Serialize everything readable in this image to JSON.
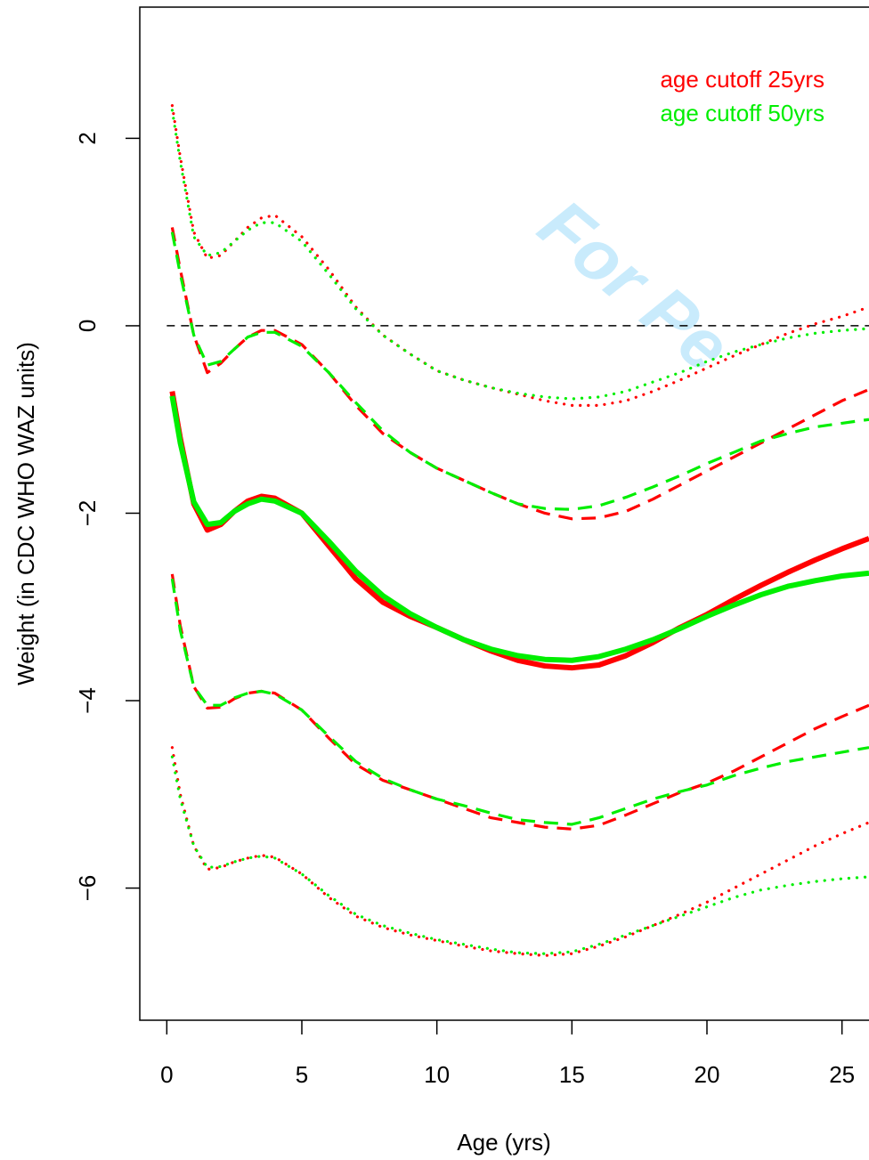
{
  "chart_data": {
    "type": "line",
    "x_label": "Age (yrs)",
    "y_label": "Weight (in CDC WHO WAZ units)",
    "watermark": "For Pe",
    "xlim": [
      -1,
      26
    ],
    "ylim": [
      -7.41,
      3.4
    ],
    "xticks": [
      0,
      5,
      10,
      15,
      20,
      25
    ],
    "yticks": [
      {
        "value": -6,
        "label": "−6"
      },
      {
        "value": -4,
        "label": "−4"
      },
      {
        "value": -2,
        "label": "−2"
      },
      0,
      2
    ],
    "hline": 0,
    "legend": [
      {
        "name": "age cutoff 25yrs",
        "color": "#ff0000"
      },
      {
        "name": "age cutoff 50yrs",
        "color": "#00ee00"
      }
    ],
    "legend_position": "top-right",
    "x": [
      0.2,
      0.5,
      1,
      1.5,
      2,
      2.5,
      3,
      3.5,
      4,
      5,
      6,
      7,
      8,
      9,
      10,
      11,
      12,
      13,
      14,
      15,
      16,
      17,
      18,
      19,
      20,
      21,
      22,
      23,
      24,
      25,
      26
    ],
    "series": [
      {
        "color": "#ff0000",
        "style": "dotted",
        "values": [
          2.35,
          1.8,
          1.0,
          0.72,
          0.75,
          0.9,
          1.05,
          1.15,
          1.18,
          0.95,
          0.6,
          0.2,
          -0.1,
          -0.3,
          -0.48,
          -0.58,
          -0.66,
          -0.73,
          -0.8,
          -0.85,
          -0.85,
          -0.8,
          -0.7,
          -0.58,
          -0.45,
          -0.32,
          -0.2,
          -0.08,
          0.02,
          0.1,
          0.2
        ]
      },
      {
        "color": "#00ee00",
        "style": "dotted",
        "values": [
          2.3,
          1.75,
          0.95,
          0.75,
          0.78,
          0.9,
          1.02,
          1.1,
          1.1,
          0.9,
          0.55,
          0.18,
          -0.1,
          -0.3,
          -0.48,
          -0.58,
          -0.66,
          -0.72,
          -0.76,
          -0.78,
          -0.76,
          -0.7,
          -0.6,
          -0.5,
          -0.38,
          -0.28,
          -0.2,
          -0.13,
          -0.08,
          -0.05,
          -0.03
        ]
      },
      {
        "color": "#ff0000",
        "style": "dashed",
        "values": [
          1.05,
          0.6,
          -0.1,
          -0.5,
          -0.4,
          -0.25,
          -0.12,
          -0.05,
          -0.05,
          -0.2,
          -0.5,
          -0.85,
          -1.15,
          -1.35,
          -1.52,
          -1.65,
          -1.78,
          -1.9,
          -2.0,
          -2.06,
          -2.05,
          -1.98,
          -1.85,
          -1.7,
          -1.55,
          -1.4,
          -1.25,
          -1.1,
          -0.95,
          -0.8,
          -0.68
        ]
      },
      {
        "color": "#00ee00",
        "style": "dashed",
        "values": [
          1.0,
          0.55,
          -0.1,
          -0.42,
          -0.38,
          -0.25,
          -0.12,
          -0.07,
          -0.07,
          -0.22,
          -0.5,
          -0.82,
          -1.12,
          -1.35,
          -1.52,
          -1.65,
          -1.78,
          -1.9,
          -1.95,
          -1.96,
          -1.92,
          -1.83,
          -1.72,
          -1.6,
          -1.47,
          -1.35,
          -1.23,
          -1.15,
          -1.08,
          -1.04,
          -1.0
        ]
      },
      {
        "color": "#ff0000",
        "style": "solid",
        "values": [
          -0.7,
          -1.2,
          -1.9,
          -2.18,
          -2.12,
          -1.98,
          -1.87,
          -1.82,
          -1.84,
          -2.0,
          -2.35,
          -2.7,
          -2.95,
          -3.1,
          -3.22,
          -3.35,
          -3.47,
          -3.57,
          -3.63,
          -3.65,
          -3.62,
          -3.52,
          -3.38,
          -3.22,
          -3.08,
          -2.92,
          -2.77,
          -2.63,
          -2.5,
          -2.38,
          -2.27
        ]
      },
      {
        "color": "#00ee00",
        "style": "solid",
        "values": [
          -0.75,
          -1.25,
          -1.88,
          -2.12,
          -2.1,
          -1.98,
          -1.9,
          -1.85,
          -1.87,
          -2.0,
          -2.3,
          -2.62,
          -2.88,
          -3.07,
          -3.22,
          -3.35,
          -3.45,
          -3.52,
          -3.56,
          -3.57,
          -3.53,
          -3.45,
          -3.35,
          -3.23,
          -3.1,
          -2.98,
          -2.87,
          -2.78,
          -2.72,
          -2.67,
          -2.64
        ]
      },
      {
        "color": "#ff0000",
        "style": "dashed",
        "values": [
          -2.65,
          -3.2,
          -3.85,
          -4.08,
          -4.07,
          -3.98,
          -3.92,
          -3.9,
          -3.92,
          -4.1,
          -4.4,
          -4.68,
          -4.85,
          -4.95,
          -5.05,
          -5.15,
          -5.25,
          -5.3,
          -5.35,
          -5.37,
          -5.33,
          -5.22,
          -5.1,
          -4.98,
          -4.88,
          -4.75,
          -4.6,
          -4.45,
          -4.3,
          -4.17,
          -4.05
        ]
      },
      {
        "color": "#00ee00",
        "style": "dashed",
        "values": [
          -2.7,
          -3.25,
          -3.85,
          -4.05,
          -4.05,
          -3.97,
          -3.92,
          -3.9,
          -3.93,
          -4.1,
          -4.38,
          -4.65,
          -4.83,
          -4.95,
          -5.05,
          -5.12,
          -5.2,
          -5.27,
          -5.3,
          -5.32,
          -5.25,
          -5.15,
          -5.05,
          -4.97,
          -4.9,
          -4.8,
          -4.72,
          -4.65,
          -4.6,
          -4.55,
          -4.5
        ]
      },
      {
        "color": "#ff0000",
        "style": "dotted",
        "values": [
          -4.5,
          -5.0,
          -5.55,
          -5.8,
          -5.78,
          -5.72,
          -5.68,
          -5.65,
          -5.67,
          -5.85,
          -6.1,
          -6.3,
          -6.42,
          -6.5,
          -6.56,
          -6.62,
          -6.67,
          -6.7,
          -6.72,
          -6.7,
          -6.62,
          -6.52,
          -6.4,
          -6.28,
          -6.15,
          -6.0,
          -5.85,
          -5.7,
          -5.55,
          -5.42,
          -5.3
        ]
      },
      {
        "color": "#00ee00",
        "style": "dotted",
        "values": [
          -4.6,
          -5.05,
          -5.55,
          -5.78,
          -5.77,
          -5.72,
          -5.68,
          -5.66,
          -5.68,
          -5.85,
          -6.08,
          -6.28,
          -6.4,
          -6.48,
          -6.55,
          -6.6,
          -6.65,
          -6.69,
          -6.7,
          -6.68,
          -6.6,
          -6.5,
          -6.4,
          -6.3,
          -6.2,
          -6.1,
          -6.02,
          -5.97,
          -5.93,
          -5.9,
          -5.88
        ]
      }
    ]
  }
}
